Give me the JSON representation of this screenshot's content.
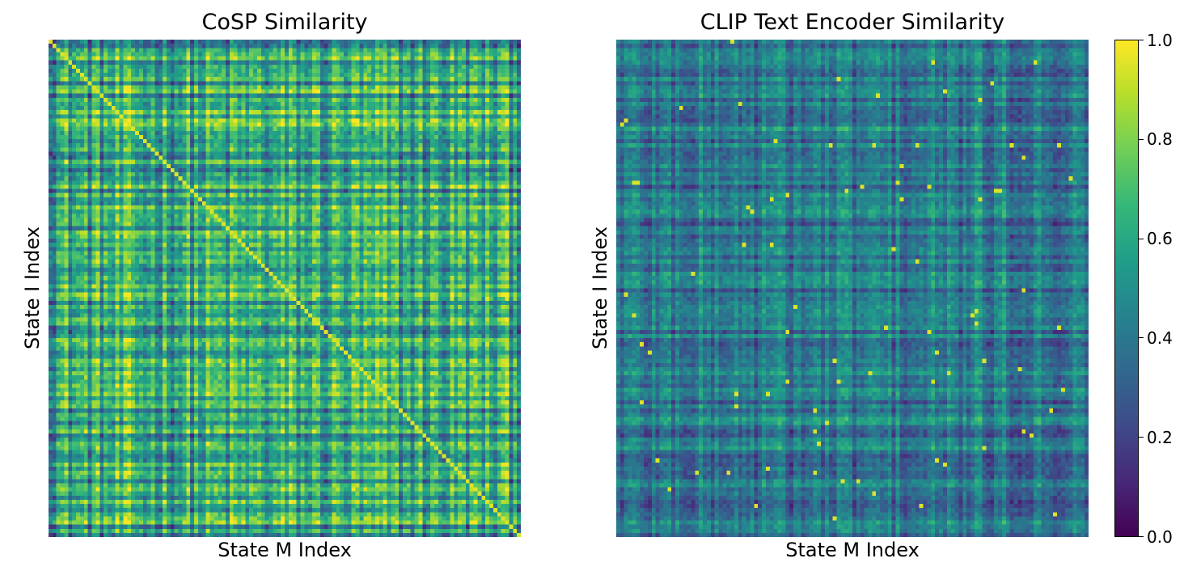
{
  "chart_data": [
    {
      "type": "heatmap",
      "title": "CoSP Similarity",
      "xlabel": "State M Index",
      "ylabel": "State I Index",
      "size": 120,
      "vlim": [
        0.0,
        1.0
      ],
      "colormap": "viridis",
      "diagonal_value": 0.95,
      "value_range_observed": [
        0.25,
        0.9
      ]
    },
    {
      "type": "heatmap",
      "title": "CLIP Text Encoder Similarity",
      "xlabel": "State M Index",
      "ylabel": "State I Index",
      "size": 120,
      "vlim": [
        0.0,
        1.0
      ],
      "colormap": "viridis",
      "diagonal_value": null,
      "value_range_observed": [
        0.2,
        1.0
      ]
    }
  ],
  "colorbar": {
    "ticks": [
      "0.0",
      "0.2",
      "0.4",
      "0.6",
      "0.8",
      "1.0"
    ],
    "tick_values": [
      0.0,
      0.2,
      0.4,
      0.6,
      0.8,
      1.0
    ],
    "colormap_stops": [
      "#440154",
      "#482878",
      "#3e4a89",
      "#31688e",
      "#26828e",
      "#1f9e89",
      "#35b779",
      "#6ece58",
      "#b5de2b",
      "#fde725"
    ]
  }
}
